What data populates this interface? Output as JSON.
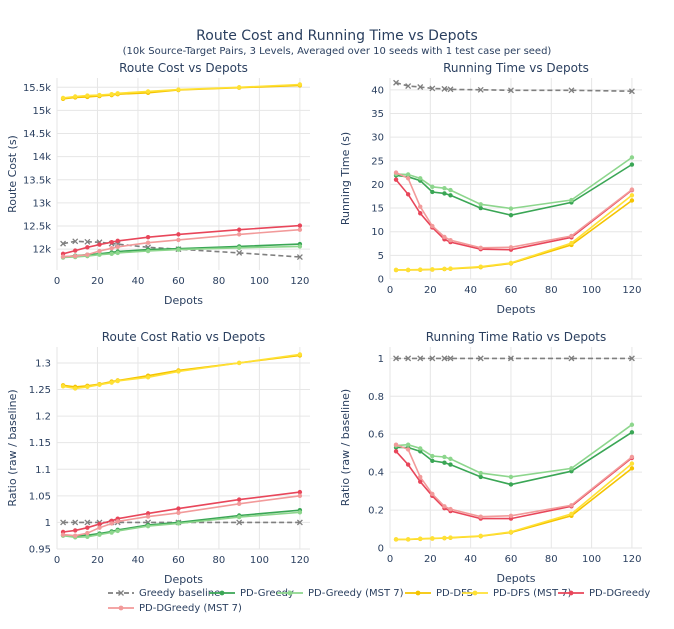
{
  "figure": {
    "title": "Route Cost and Running Time vs Depots",
    "subtitle": "(10k Source-Target Pairs, 3 Levels, Averaged over 10 seeds with 1 test case per seed)"
  },
  "series_styles": [
    {
      "name": "Greedy baseline",
      "color": "#7f7f7f",
      "dash": true
    },
    {
      "name": "PD-Greedy",
      "color": "#3aa655",
      "dash": false
    },
    {
      "name": "PD-Greedy (MST 7)",
      "color": "#8dd68d",
      "dash": false
    },
    {
      "name": "PD-DFS",
      "color": "#f5c400",
      "dash": false
    },
    {
      "name": "PD-DFS (MST 7)",
      "color": "#ffe135",
      "dash": false
    },
    {
      "name": "PD-DGreedy",
      "color": "#e8465a",
      "dash": false
    },
    {
      "name": "PD-DGreedy (MST 7)",
      "color": "#f29a9a",
      "dash": false
    }
  ],
  "chart_data": [
    {
      "type": "line",
      "title": "Route Cost vs Depots",
      "xlabel": "Depots",
      "ylabel": "Route Cost (s)",
      "xlim": [
        0,
        125
      ],
      "ylim": [
        11550,
        15700
      ],
      "xticks": [
        0,
        20,
        40,
        60,
        80,
        100,
        120
      ],
      "yticks": [
        12000,
        12500,
        13000,
        13500,
        14000,
        14500,
        15000,
        15500
      ],
      "ytick_labels": [
        "12k",
        "12.5k",
        "13k",
        "13.5k",
        "14k",
        "14.5k",
        "15k",
        "15.5k"
      ],
      "x": [
        3,
        9,
        15,
        21,
        27,
        30,
        45,
        60,
        90,
        120
      ],
      "series": [
        {
          "name": "Greedy baseline",
          "values": [
            12120,
            12170,
            12160,
            12150,
            12120,
            12110,
            12040,
            12000,
            11920,
            11830
          ]
        },
        {
          "name": "PD-Greedy",
          "values": [
            11830,
            11860,
            11880,
            11900,
            11930,
            11950,
            11990,
            12010,
            12060,
            12110
          ]
        },
        {
          "name": "PD-Greedy (MST 7)",
          "values": [
            11820,
            11830,
            11850,
            11880,
            11900,
            11920,
            11960,
            11990,
            12030,
            12060
          ]
        },
        {
          "name": "PD-DFS",
          "values": [
            15250,
            15280,
            15290,
            15310,
            15330,
            15350,
            15380,
            15440,
            15490,
            15540
          ]
        },
        {
          "name": "PD-DFS (MST 7)",
          "values": [
            15270,
            15300,
            15320,
            15330,
            15350,
            15370,
            15410,
            15450,
            15500,
            15560
          ]
        },
        {
          "name": "PD-DGreedy",
          "values": [
            11900,
            11970,
            12040,
            12100,
            12150,
            12180,
            12260,
            12320,
            12420,
            12510
          ]
        },
        {
          "name": "PD-DGreedy (MST 7)",
          "values": [
            11840,
            11850,
            11880,
            11960,
            12020,
            12050,
            12140,
            12200,
            12320,
            12420
          ]
        }
      ]
    },
    {
      "type": "line",
      "title": "Running Time vs Depots",
      "xlabel": "Depots",
      "ylabel": "Running Time (s)",
      "xlim": [
        0,
        125
      ],
      "ylim": [
        0,
        42.5
      ],
      "xticks": [
        0,
        20,
        40,
        60,
        80,
        100,
        120
      ],
      "yticks": [
        0,
        5,
        10,
        15,
        20,
        25,
        30,
        35,
        40
      ],
      "ytick_labels": [
        "0",
        "5",
        "10",
        "15",
        "20",
        "25",
        "30",
        "35",
        "40"
      ],
      "x": [
        3,
        9,
        15,
        21,
        27,
        30,
        45,
        60,
        90,
        120
      ],
      "series": [
        {
          "name": "Greedy baseline",
          "values": [
            41.5,
            40.8,
            40.6,
            40.3,
            40.2,
            40.1,
            40.0,
            39.9,
            39.9,
            39.7
          ]
        },
        {
          "name": "PD-Greedy",
          "values": [
            21.9,
            21.6,
            20.8,
            18.4,
            18.1,
            17.7,
            15.0,
            13.5,
            16.2,
            24.2
          ]
        },
        {
          "name": "PD-Greedy (MST 7)",
          "values": [
            22.2,
            22.1,
            21.3,
            19.5,
            19.2,
            18.8,
            15.8,
            14.9,
            16.7,
            25.7
          ]
        },
        {
          "name": "PD-DFS",
          "values": [
            1.9,
            1.9,
            1.95,
            2.0,
            2.1,
            2.15,
            2.5,
            3.3,
            7.2,
            16.6
          ]
        },
        {
          "name": "PD-DFS (MST 7)",
          "values": [
            1.95,
            1.95,
            2.0,
            2.05,
            2.15,
            2.2,
            2.6,
            3.4,
            7.6,
            17.7
          ]
        },
        {
          "name": "PD-DGreedy",
          "values": [
            21.0,
            17.9,
            13.9,
            10.9,
            8.4,
            7.8,
            6.3,
            6.2,
            8.8,
            18.8
          ]
        },
        {
          "name": "PD-DGreedy (MST 7)",
          "values": [
            22.5,
            21.3,
            15.3,
            11.2,
            8.9,
            8.2,
            6.6,
            6.7,
            9.1,
            18.9
          ]
        }
      ]
    },
    {
      "type": "line",
      "title": "Route Cost Ratio vs Depots",
      "xlabel": "Depots",
      "ylabel": "Ratio (raw / baseline)",
      "xlim": [
        0,
        125
      ],
      "ylim": [
        0.95,
        1.33
      ],
      "xticks": [
        0,
        20,
        40,
        60,
        80,
        100,
        120
      ],
      "yticks": [
        0.95,
        1.0,
        1.05,
        1.1,
        1.15,
        1.2,
        1.25,
        1.3
      ],
      "ytick_labels": [
        "0.95",
        "1",
        "1.05",
        "1.1",
        "1.15",
        "1.2",
        "1.25",
        "1.3"
      ],
      "x": [
        3,
        9,
        15,
        21,
        27,
        30,
        45,
        60,
        90,
        120
      ],
      "series": [
        {
          "name": "Greedy baseline",
          "values": [
            1.0,
            1.0,
            1.0,
            1.0,
            1.0,
            1.0,
            1.0,
            1.0,
            1.0,
            1.0
          ]
        },
        {
          "name": "PD-Greedy",
          "values": [
            0.976,
            0.974,
            0.976,
            0.979,
            0.983,
            0.986,
            0.995,
            1.0,
            1.013,
            1.023
          ]
        },
        {
          "name": "PD-Greedy (MST 7)",
          "values": [
            0.975,
            0.972,
            0.973,
            0.977,
            0.981,
            0.984,
            0.993,
            0.998,
            1.01,
            1.019
          ]
        },
        {
          "name": "PD-DFS",
          "values": [
            1.258,
            1.255,
            1.257,
            1.26,
            1.265,
            1.267,
            1.276,
            1.286,
            1.3,
            1.314
          ]
        },
        {
          "name": "PD-DFS (MST 7)",
          "values": [
            1.256,
            1.252,
            1.255,
            1.259,
            1.263,
            1.266,
            1.273,
            1.284,
            1.3,
            1.316
          ]
        },
        {
          "name": "PD-DGreedy",
          "values": [
            0.982,
            0.985,
            0.99,
            0.997,
            1.003,
            1.007,
            1.017,
            1.026,
            1.043,
            1.057
          ]
        },
        {
          "name": "PD-DGreedy (MST 7)",
          "values": [
            0.977,
            0.975,
            0.98,
            0.99,
            0.998,
            1.002,
            1.011,
            1.018,
            1.035,
            1.05
          ]
        }
      ]
    },
    {
      "type": "line",
      "title": "Running Time Ratio vs Depots",
      "xlabel": "Depots",
      "ylabel": "Ratio (raw / baseline)",
      "xlim": [
        0,
        125
      ],
      "ylim": [
        0,
        1.06
      ],
      "xticks": [
        0,
        20,
        40,
        60,
        80,
        100,
        120
      ],
      "yticks": [
        0,
        0.2,
        0.4,
        0.6,
        0.8,
        1.0
      ],
      "ytick_labels": [
        "0",
        "0.2",
        "0.4",
        "0.6",
        "0.8",
        "1"
      ],
      "x": [
        3,
        9,
        15,
        21,
        27,
        30,
        45,
        60,
        90,
        120
      ],
      "series": [
        {
          "name": "Greedy baseline",
          "values": [
            1.0,
            1.0,
            1.0,
            1.0,
            1.0,
            1.0,
            1.0,
            1.0,
            1.0,
            1.0
          ]
        },
        {
          "name": "PD-Greedy",
          "values": [
            0.53,
            0.53,
            0.51,
            0.46,
            0.45,
            0.44,
            0.375,
            0.335,
            0.405,
            0.61
          ]
        },
        {
          "name": "PD-Greedy (MST 7)",
          "values": [
            0.54,
            0.545,
            0.525,
            0.485,
            0.48,
            0.47,
            0.395,
            0.375,
            0.42,
            0.65
          ]
        },
        {
          "name": "PD-DFS",
          "values": [
            0.045,
            0.045,
            0.048,
            0.05,
            0.052,
            0.054,
            0.062,
            0.082,
            0.17,
            0.42
          ]
        },
        {
          "name": "PD-DFS (MST 7)",
          "values": [
            0.046,
            0.046,
            0.049,
            0.051,
            0.053,
            0.055,
            0.064,
            0.085,
            0.18,
            0.445
          ]
        },
        {
          "name": "PD-DGreedy",
          "values": [
            0.51,
            0.44,
            0.35,
            0.275,
            0.21,
            0.195,
            0.155,
            0.155,
            0.22,
            0.475
          ]
        },
        {
          "name": "PD-DGreedy (MST 7)",
          "values": [
            0.545,
            0.52,
            0.375,
            0.285,
            0.22,
            0.205,
            0.165,
            0.17,
            0.225,
            0.48
          ]
        }
      ]
    }
  ],
  "legend": [
    "Greedy baseline",
    "PD-Greedy",
    "PD-Greedy (MST 7)",
    "PD-DFS",
    "PD-DFS (MST 7)",
    "PD-DGreedy",
    "PD-DGreedy (MST 7)"
  ]
}
